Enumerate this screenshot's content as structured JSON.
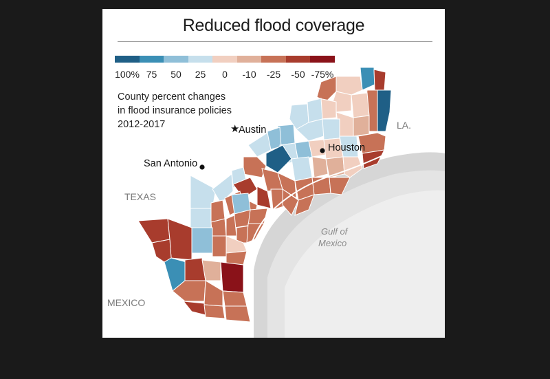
{
  "title": "Reduced flood coverage",
  "caption": [
    "County percent changes",
    "in flood insurance policies",
    "2012-2017"
  ],
  "legend": [
    {
      "label": "100%",
      "color": "#1f5f86"
    },
    {
      "label": "75",
      "color": "#3b8fb5"
    },
    {
      "label": "50",
      "color": "#8fbfd8"
    },
    {
      "label": "25",
      "color": "#c6dfec"
    },
    {
      "label": "0",
      "color": "#f1cfc0"
    },
    {
      "label": "-10",
      "color": "#e0b09a"
    },
    {
      "label": "-25",
      "color": "#c77257"
    },
    {
      "label": "-50",
      "color": "#a83c2d"
    },
    {
      "label": "-75%",
      "color": "#8a1219"
    }
  ],
  "places": {
    "austin": "Austin",
    "houston": "Houston",
    "san_antonio": "San Antonio",
    "texas": "TEXAS",
    "mexico": "MEXICO",
    "la": "LA.",
    "gulf": [
      "Gulf of",
      "Mexico"
    ]
  }
}
